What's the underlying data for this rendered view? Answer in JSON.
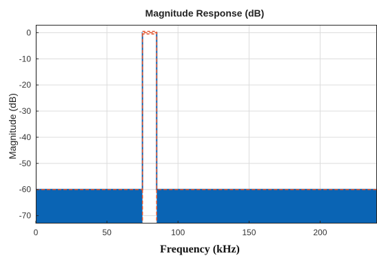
{
  "chart_data": {
    "type": "line",
    "title": "Magnitude Response (dB)",
    "xlabel": "Frequency (kHz)",
    "ylabel": "Magnitude (dB)",
    "xlim": [
      0,
      240
    ],
    "ylim": [
      -73,
      3
    ],
    "xticks": [
      0,
      50,
      100,
      150,
      200
    ],
    "yticks": [
      0,
      -10,
      -20,
      -30,
      -40,
      -50,
      -60,
      -70
    ],
    "grid": true,
    "series": [
      {
        "style": "filled-response",
        "color": "#0a64b4",
        "x": [
          0,
          75,
          75,
          85,
          85,
          240
        ],
        "y": [
          -60,
          -60,
          0,
          0,
          -60,
          -60
        ],
        "stopband_fill_to": -73
      },
      {
        "style": "dashed-mask",
        "color": "#e0502a",
        "x": [
          0,
          75,
          75,
          85,
          85,
          240
        ],
        "y": [
          -60,
          -60,
          0,
          0,
          -60,
          -60
        ],
        "passband_ripple": [
          -0.5,
          0.5
        ]
      }
    ]
  }
}
